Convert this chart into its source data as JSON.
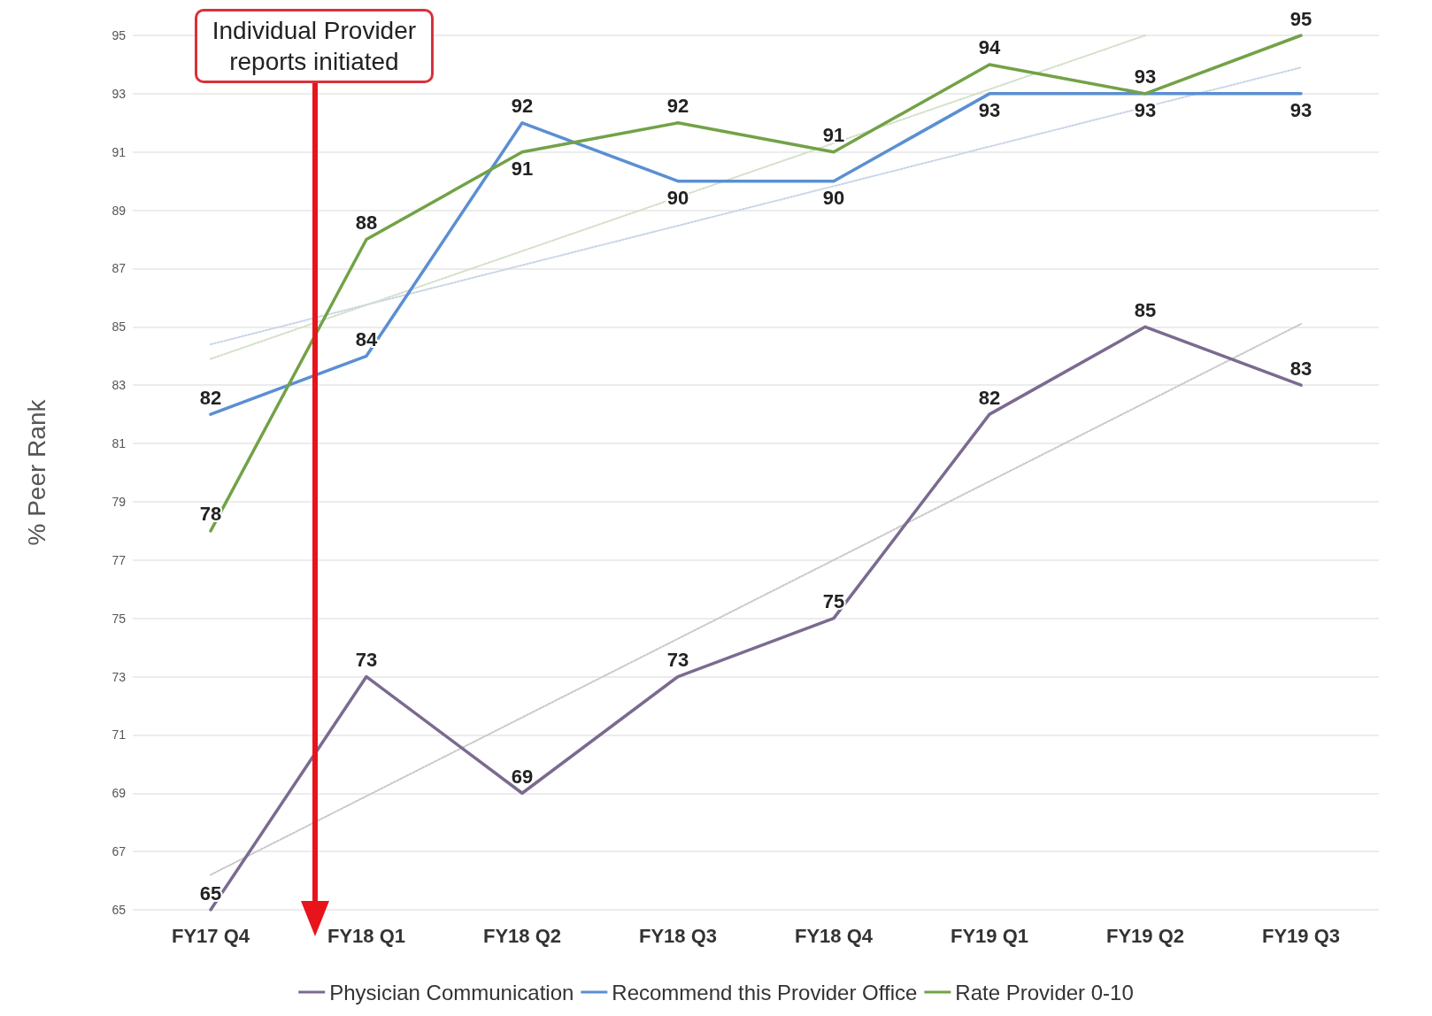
{
  "chart_data": {
    "type": "line",
    "ylabel": "% Peer Rank",
    "categories": [
      "FY17 Q4",
      "FY18 Q1",
      "FY18 Q2",
      "FY18 Q3",
      "FY18 Q4",
      "FY19 Q1",
      "FY19 Q2",
      "FY19 Q3"
    ],
    "series": [
      {
        "name": "Physician Communication",
        "color": "#7b6a90",
        "values": [
          65,
          73,
          69,
          73,
          75,
          82,
          85,
          83
        ]
      },
      {
        "name": "Recommend this Provider Office",
        "color": "#5b8fd2",
        "values": [
          82,
          84,
          92,
          90,
          90,
          93,
          93,
          93
        ]
      },
      {
        "name": "Rate Provider 0-10",
        "color": "#72a247",
        "values": [
          78,
          88,
          91,
          92,
          91,
          94,
          93,
          95
        ]
      },
      {
        "type": "line",
        "color": "#c8c8c8",
        "line_style": "dotted",
        "data_labels": false,
        "x": [
          "FY17 Q4",
          "FY19 Q3"
        ],
        "values": [
          66.2,
          85.1
        ]
      },
      {
        "type": "line",
        "color": "#c8d4e8",
        "line_style": "dotted",
        "data_labels": false,
        "x": [
          "FY17 Q4",
          "FY19 Q3"
        ],
        "values": [
          84.4,
          93.9
        ]
      },
      {
        "type": "line",
        "color": "#d2dfc6",
        "line_style": "dotted",
        "data_labels": false,
        "x": [
          "FY17 Q4",
          "FY19 Q2"
        ],
        "values": [
          83.9,
          95
        ]
      }
    ],
    "ylim": [
      65,
      95
    ],
    "yticks": [
      65,
      67,
      69,
      71,
      73,
      75,
      77,
      79,
      81,
      83,
      85,
      87,
      89,
      91,
      93,
      95
    ],
    "grid": "y",
    "legend": "bottom",
    "marker": "none",
    "line_style": "solid",
    "data_labels": true,
    "annotations": [
      "Individual Provider reports initiated"
    ]
  }
}
